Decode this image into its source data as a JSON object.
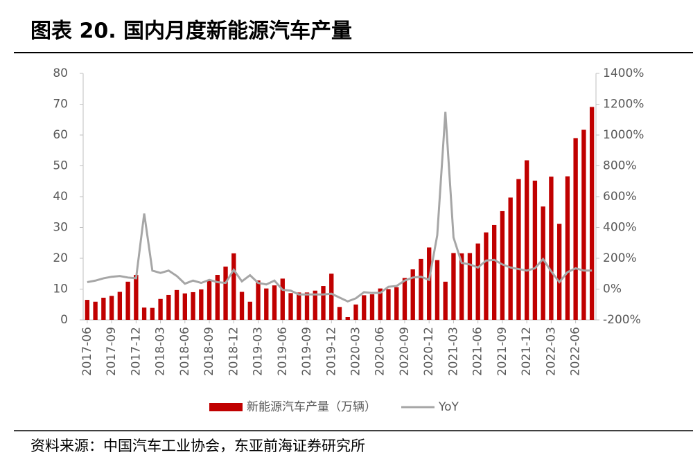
{
  "title": "图表 20. 国内月度新能源汽车产量",
  "source": "资料来源：中国汽车工业协会，东亚前海证券研究所",
  "chart_data": {
    "type": "bar",
    "categories": [
      "2017-06",
      null,
      null,
      "2017-09",
      null,
      null,
      "2017-12",
      null,
      null,
      "2018-03",
      null,
      null,
      "2018-06",
      null,
      null,
      "2018-09",
      null,
      null,
      "2018-12",
      null,
      null,
      "2019-03",
      null,
      null,
      "2019-06",
      null,
      null,
      "2019-09",
      null,
      null,
      "2019-12",
      null,
      null,
      "2020-03",
      null,
      null,
      "2020-06",
      null,
      null,
      "2020-09",
      null,
      null,
      "2020-12",
      null,
      null,
      "2021-03",
      null,
      null,
      "2021-06",
      null,
      null,
      "2021-09",
      null,
      null,
      "2021-12",
      null,
      null,
      "2022-03",
      null,
      null,
      "2022-06",
      null,
      null
    ],
    "series": [
      {
        "name": "新能源汽车产量（万辆）",
        "type": "bar",
        "color": "#c00000",
        "values": [
          6.5,
          5.9,
          7.2,
          7.8,
          9.1,
          12.4,
          14.6,
          4.0,
          3.9,
          6.8,
          8.1,
          9.7,
          8.6,
          9.0,
          9.9,
          12.7,
          14.6,
          17.3,
          21.6,
          9.1,
          5.9,
          12.8,
          10.2,
          11.2,
          13.4,
          8.7,
          8.9,
          8.9,
          9.5,
          11.0,
          15.0,
          4.2,
          0.9,
          5.0,
          8.0,
          8.3,
          10.2,
          10.0,
          10.6,
          13.6,
          16.4,
          19.8,
          23.5,
          19.4,
          12.4,
          21.7,
          21.6,
          21.7,
          24.8,
          28.4,
          30.8,
          35.3,
          39.7,
          45.7,
          51.8,
          45.2,
          36.8,
          46.5,
          31.2,
          46.6,
          59.0,
          61.7,
          69.1
        ]
      },
      {
        "name": "YoY",
        "type": "line",
        "axis": "y2",
        "color": "#a6a6a6",
        "values": [
          45,
          55,
          70,
          80,
          85,
          75,
          70,
          490,
          120,
          105,
          120,
          85,
          35,
          55,
          40,
          60,
          45,
          40,
          125,
          50,
          90,
          40,
          30,
          55,
          -5,
          -10,
          -35,
          -35,
          -35,
          -35,
          -30,
          -55,
          -80,
          -60,
          -20,
          -25,
          -25,
          15,
          20,
          55,
          75,
          80,
          60,
          350,
          1150,
          335,
          170,
          160,
          140,
          185,
          190,
          160,
          140,
          130,
          120,
          135,
          195,
          115,
          45,
          110,
          135,
          120,
          120
        ]
      }
    ],
    "ylim": [
      0,
      80
    ],
    "yticks": [
      0,
      10,
      20,
      30,
      40,
      50,
      60,
      70,
      80
    ],
    "y2lim": [
      -200,
      1400
    ],
    "y2ticks": [
      {
        "value": -200,
        "label": "-200%"
      },
      {
        "value": 0,
        "label": "0%"
      },
      {
        "value": 200,
        "label": "200%"
      },
      {
        "value": 400,
        "label": "400%"
      },
      {
        "value": 600,
        "label": "600%"
      },
      {
        "value": 800,
        "label": "800%"
      },
      {
        "value": 1000,
        "label": "1000%"
      },
      {
        "value": 1200,
        "label": "1200%"
      },
      {
        "value": 1400,
        "label": "1400%"
      }
    ],
    "legend": "bottom"
  }
}
